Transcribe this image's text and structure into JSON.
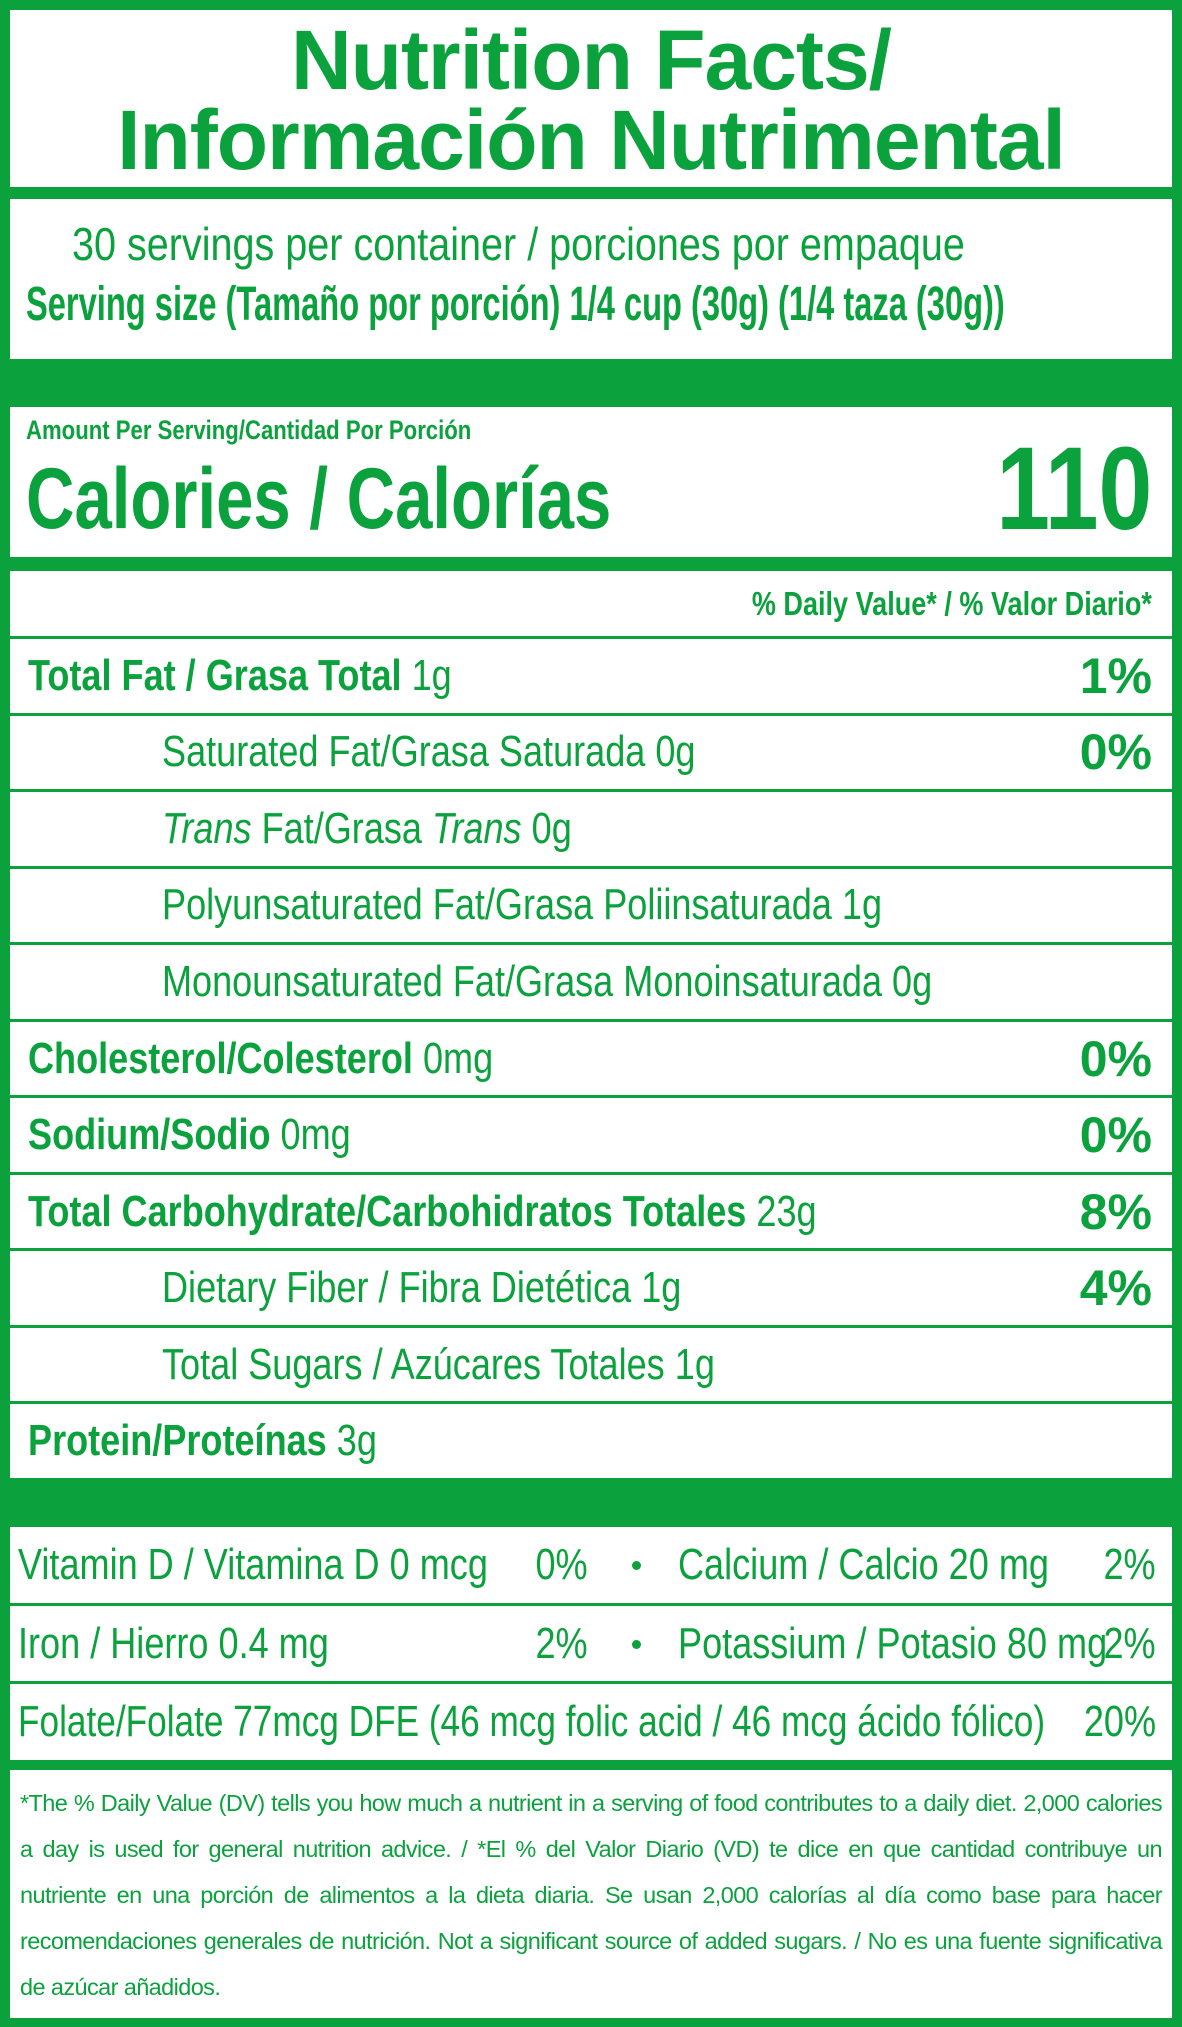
{
  "header": {
    "title_line1": "Nutrition Facts/",
    "title_line2": "Información Nutrimental"
  },
  "servings": {
    "per_container": "30 servings per container / porciones por empaque",
    "serving_size": "Serving size (Tamaño por porción) 1/4 cup (30g) (1/4 taza (30g))"
  },
  "calories": {
    "amount_per_serving": "Amount Per Serving/Cantidad Por Porción",
    "label": "Calories / Calorías",
    "value": 110
  },
  "daily_value_header": "% Daily Value* / % Valor Diario*",
  "nutrients": [
    {
      "name": "Total Fat / Grasa Total",
      "amount": "1g",
      "dv": "1%",
      "indent": false
    },
    {
      "name": "Saturated Fat/Grasa Saturada 0g",
      "dv": "0%",
      "indent": true
    },
    {
      "name_parts": [
        {
          "text": "Trans",
          "italic": true
        },
        {
          "text": "Fat/Grasa",
          "italic": false
        },
        {
          "text": "Trans",
          "italic": true
        },
        {
          "text": "0g",
          "italic": false
        }
      ],
      "indent": true
    },
    {
      "name": "Polyunsaturated Fat/Grasa Poliinsaturada 1g",
      "indent": true
    },
    {
      "name": "Monounsaturated Fat/Grasa Monoinsaturada 0g",
      "indent": true
    },
    {
      "name": "Cholesterol/Colesterol",
      "amount": "0mg",
      "dv": "0%",
      "indent": false
    },
    {
      "name": "Sodium/Sodio",
      "amount": "0mg",
      "dv": "0%",
      "indent": false
    },
    {
      "name": "Total Carbohydrate/Carbohidratos Totales",
      "amount": "23g",
      "dv": "8%",
      "indent": false
    },
    {
      "name": "Dietary Fiber / Fibra Dietética 1g",
      "dv": "4%",
      "indent": true
    },
    {
      "name": "Total Sugars / Azúcares Totales 1g",
      "indent": true
    },
    {
      "name": "Protein/Proteínas",
      "amount": "3g",
      "indent": false
    }
  ],
  "vitamins": [
    [
      {
        "name": "Vitamin D / Vitamina D 0 mcg",
        "dv": "0%"
      },
      {
        "name": "Calcium / Calcio 20 mg",
        "dv": "2%"
      }
    ],
    [
      {
        "name": "Iron / Hierro 0.4 mg",
        "dv": "2%"
      },
      {
        "name": "Potassium / Potasio 80 mg",
        "dv": "2%"
      }
    ],
    [
      {
        "name": "Folate/Folate 77mcg DFE (46 mcg folic acid / 46 mcg ácido fólico)",
        "dv": "20%"
      }
    ]
  ],
  "footnote": "*The % Daily Value (DV) tells you how much a nutrient in a serving of food contributes to a daily diet. 2,000 calories a day is used for general nutrition advice. / *El % del Valor Diario (VD) te dice en que cantidad contribuye un nutriente en una porción de alimentos a la dieta diaria. Se usan 2,000 calorías al día como base para hacer recomendaciones generales de nutrición. Not a significant source of added sugars. / No es una fuente significativa de azúcar añadidos."
}
